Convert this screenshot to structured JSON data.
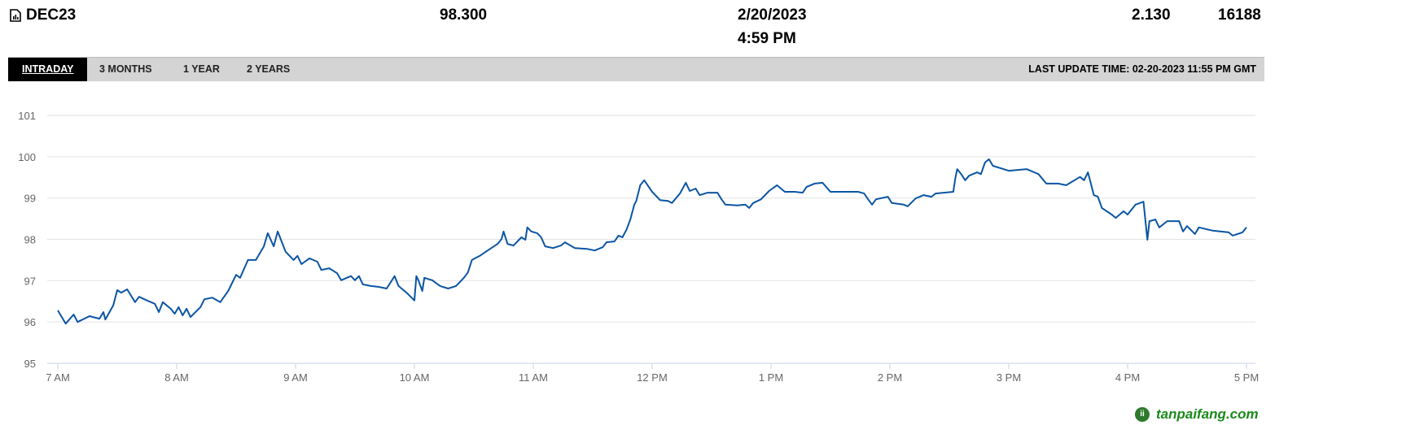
{
  "header": {
    "symbol": "DEC23",
    "symbol_icon": "chart-document-icon",
    "last_price": "98.300",
    "date": "2/20/2023",
    "time": "4:59 PM",
    "change": "2.130",
    "volume": "16188"
  },
  "tabs": [
    {
      "label": "INTRADAY",
      "active": true
    },
    {
      "label": "3 MONTHS"
    },
    {
      "label": "1 YEAR"
    },
    {
      "label": "2 YEARS"
    }
  ],
  "last_update": "LAST UPDATE TIME: 02-20-2023 11:55 PM GMT",
  "watermark": "tanpaifang.com",
  "chart_data": {
    "type": "line",
    "line_color": "#0b55a3",
    "grid": true,
    "ylim": [
      95,
      101
    ],
    "yticks": [
      "95",
      "96",
      "97",
      "98",
      "99",
      "100",
      "101"
    ],
    "xlim": [
      "7:00",
      "17:00"
    ],
    "xticks": [
      {
        "t": "7:00",
        "label": "7 AM"
      },
      {
        "t": "8:00",
        "label": "8 AM"
      },
      {
        "t": "9:00",
        "label": "9 AM"
      },
      {
        "t": "10:00",
        "label": "10 AM"
      },
      {
        "t": "11:00",
        "label": "11 AM"
      },
      {
        "t": "12:00",
        "label": "12 PM"
      },
      {
        "t": "13:00",
        "label": "1 PM"
      },
      {
        "t": "14:00",
        "label": "2 PM"
      },
      {
        "t": "15:00",
        "label": "3 PM"
      },
      {
        "t": "16:00",
        "label": "4 PM"
      },
      {
        "t": "17:00",
        "label": "5 PM"
      }
    ],
    "points": [
      [
        "7:00",
        96.28
      ],
      [
        "7:04",
        95.96
      ],
      [
        "7:08",
        96.18
      ],
      [
        "7:10",
        96.0
      ],
      [
        "7:16",
        96.14
      ],
      [
        "7:21",
        96.08
      ],
      [
        "7:23",
        96.24
      ],
      [
        "7:24",
        96.06
      ],
      [
        "7:28",
        96.4
      ],
      [
        "7:30",
        96.77
      ],
      [
        "7:32",
        96.71
      ],
      [
        "7:35",
        96.79
      ],
      [
        "7:39",
        96.48
      ],
      [
        "7:41",
        96.61
      ],
      [
        "7:45",
        96.52
      ],
      [
        "7:49",
        96.44
      ],
      [
        "7:51",
        96.24
      ],
      [
        "7:53",
        96.48
      ],
      [
        "7:57",
        96.32
      ],
      [
        "7:59",
        96.2
      ],
      [
        "8:01",
        96.36
      ],
      [
        "8:03",
        96.16
      ],
      [
        "8:05",
        96.32
      ],
      [
        "8:07",
        96.12
      ],
      [
        "8:12",
        96.36
      ],
      [
        "8:14",
        96.55
      ],
      [
        "8:18",
        96.59
      ],
      [
        "8:22",
        96.48
      ],
      [
        "8:26",
        96.75
      ],
      [
        "8:30",
        97.14
      ],
      [
        "8:32",
        97.07
      ],
      [
        "8:36",
        97.5
      ],
      [
        "8:40",
        97.5
      ],
      [
        "8:44",
        97.83
      ],
      [
        "8:46",
        98.15
      ],
      [
        "8:49",
        97.83
      ],
      [
        "8:51",
        98.19
      ],
      [
        "8:55",
        97.7
      ],
      [
        "8:59",
        97.5
      ],
      [
        "9:01",
        97.6
      ],
      [
        "9:03",
        97.4
      ],
      [
        "9:07",
        97.54
      ],
      [
        "9:11",
        97.46
      ],
      [
        "9:13",
        97.26
      ],
      [
        "9:17",
        97.3
      ],
      [
        "9:21",
        97.18
      ],
      [
        "9:23",
        97.01
      ],
      [
        "9:28",
        97.11
      ],
      [
        "9:30",
        97.01
      ],
      [
        "9:32",
        97.11
      ],
      [
        "9:34",
        96.91
      ],
      [
        "9:38",
        96.87
      ],
      [
        "9:42",
        96.85
      ],
      [
        "9:46",
        96.81
      ],
      [
        "9:50",
        97.11
      ],
      [
        "9:52",
        96.87
      ],
      [
        "9:56",
        96.71
      ],
      [
        "10:00",
        96.52
      ],
      [
        "10:01",
        97.11
      ],
      [
        "10:02",
        97.01
      ],
      [
        "10:04",
        96.75
      ],
      [
        "10:05",
        97.07
      ],
      [
        "10:09",
        97.01
      ],
      [
        "10:13",
        96.87
      ],
      [
        "10:17",
        96.81
      ],
      [
        "10:21",
        96.87
      ],
      [
        "10:25",
        97.07
      ],
      [
        "10:27",
        97.2
      ],
      [
        "10:29",
        97.5
      ],
      [
        "10:33",
        97.6
      ],
      [
        "10:37",
        97.73
      ],
      [
        "10:42",
        97.89
      ],
      [
        "10:44",
        98.01
      ],
      [
        "10:45",
        98.19
      ],
      [
        "10:47",
        97.89
      ],
      [
        "10:50",
        97.85
      ],
      [
        "10:54",
        98.05
      ],
      [
        "10:56",
        97.99
      ],
      [
        "10:57",
        98.29
      ],
      [
        "10:59",
        98.19
      ],
      [
        "11:02",
        98.15
      ],
      [
        "11:04",
        98.05
      ],
      [
        "11:06",
        97.83
      ],
      [
        "11:10",
        97.79
      ],
      [
        "11:14",
        97.85
      ],
      [
        "11:16",
        97.93
      ],
      [
        "11:21",
        97.79
      ],
      [
        "11:27",
        97.77
      ],
      [
        "11:31",
        97.73
      ],
      [
        "11:35",
        97.81
      ],
      [
        "11:37",
        97.93
      ],
      [
        "11:41",
        97.95
      ],
      [
        "11:43",
        98.09
      ],
      [
        "11:45",
        98.05
      ],
      [
        "11:47",
        98.23
      ],
      [
        "11:49",
        98.48
      ],
      [
        "11:51",
        98.84
      ],
      [
        "11:52",
        98.93
      ],
      [
        "11:54",
        99.31
      ],
      [
        "11:56",
        99.43
      ],
      [
        "12:00",
        99.15
      ],
      [
        "12:04",
        98.95
      ],
      [
        "12:08",
        98.93
      ],
      [
        "12:10",
        98.88
      ],
      [
        "12:14",
        99.11
      ],
      [
        "12:17",
        99.37
      ],
      [
        "12:19",
        99.17
      ],
      [
        "12:22",
        99.23
      ],
      [
        "12:24",
        99.07
      ],
      [
        "12:28",
        99.13
      ],
      [
        "12:33",
        99.13
      ],
      [
        "12:35",
        98.97
      ],
      [
        "12:37",
        98.84
      ],
      [
        "12:43",
        98.82
      ],
      [
        "12:47",
        98.84
      ],
      [
        "12:49",
        98.76
      ],
      [
        "12:51",
        98.88
      ],
      [
        "12:55",
        98.97
      ],
      [
        "12:59",
        99.17
      ],
      [
        "13:03",
        99.31
      ],
      [
        "13:07",
        99.15
      ],
      [
        "13:12",
        99.15
      ],
      [
        "13:16",
        99.13
      ],
      [
        "13:18",
        99.27
      ],
      [
        "13:22",
        99.35
      ],
      [
        "13:26",
        99.37
      ],
      [
        "13:30",
        99.15
      ],
      [
        "13:36",
        99.15
      ],
      [
        "13:44",
        99.15
      ],
      [
        "13:47",
        99.11
      ],
      [
        "13:49",
        98.97
      ],
      [
        "13:51",
        98.84
      ],
      [
        "13:53",
        98.97
      ],
      [
        "13:59",
        99.03
      ],
      [
        "14:01",
        98.88
      ],
      [
        "14:07",
        98.84
      ],
      [
        "14:09",
        98.8
      ],
      [
        "14:13",
        98.99
      ],
      [
        "14:17",
        99.07
      ],
      [
        "14:21",
        99.03
      ],
      [
        "14:23",
        99.11
      ],
      [
        "14:32",
        99.15
      ],
      [
        "14:33",
        99.47
      ],
      [
        "14:34",
        99.7
      ],
      [
        "14:36",
        99.58
      ],
      [
        "14:38",
        99.43
      ],
      [
        "14:40",
        99.54
      ],
      [
        "14:44",
        99.62
      ],
      [
        "14:46",
        99.58
      ],
      [
        "14:48",
        99.86
      ],
      [
        "14:50",
        99.94
      ],
      [
        "14:52",
        99.78
      ],
      [
        "15:00",
        99.66
      ],
      [
        "15:09",
        99.7
      ],
      [
        "15:15",
        99.58
      ],
      [
        "15:19",
        99.35
      ],
      [
        "15:25",
        99.35
      ],
      [
        "15:29",
        99.31
      ],
      [
        "15:36",
        99.51
      ],
      [
        "15:38",
        99.43
      ],
      [
        "15:40",
        99.62
      ],
      [
        "15:43",
        99.07
      ],
      [
        "15:45",
        99.03
      ],
      [
        "15:47",
        98.76
      ],
      [
        "15:52",
        98.6
      ],
      [
        "15:54",
        98.52
      ],
      [
        "15:58",
        98.68
      ],
      [
        "16:00",
        98.6
      ],
      [
        "16:04",
        98.84
      ],
      [
        "16:08",
        98.91
      ],
      [
        "16:10",
        97.99
      ],
      [
        "16:11",
        98.44
      ],
      [
        "16:14",
        98.48
      ],
      [
        "16:16",
        98.29
      ],
      [
        "16:20",
        98.44
      ],
      [
        "16:26",
        98.44
      ],
      [
        "16:28",
        98.19
      ],
      [
        "16:30",
        98.32
      ],
      [
        "16:34",
        98.13
      ],
      [
        "16:36",
        98.29
      ],
      [
        "16:43",
        98.21
      ],
      [
        "16:51",
        98.17
      ],
      [
        "16:53",
        98.09
      ],
      [
        "16:58",
        98.17
      ],
      [
        "17:00",
        98.29
      ]
    ]
  }
}
